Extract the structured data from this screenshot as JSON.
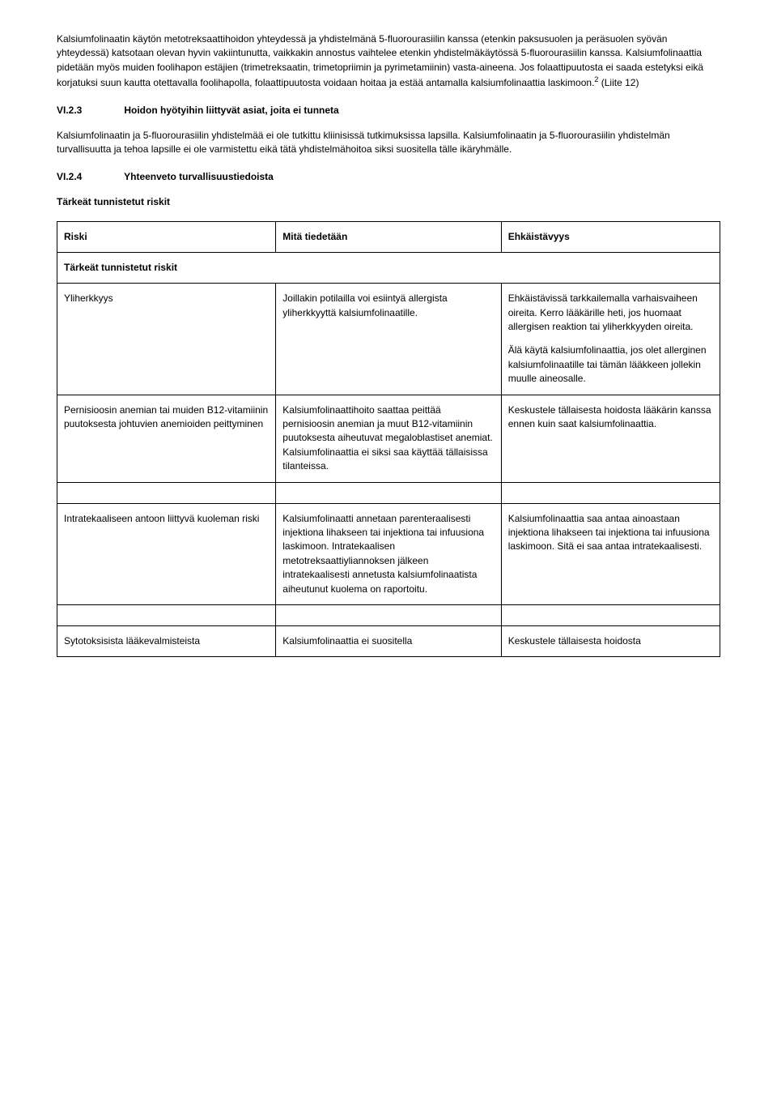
{
  "intro_p1": "Kalsiumfolinaatin käytön metotreksaattihoidon yhteydessä ja yhdistelmänä 5-fluorourasiilin kanssa (etenkin paksusuolen ja peräsuolen syövän yhteydessä) katsotaan olevan hyvin vakiintunutta, vaikkakin annostus vaihtelee etenkin yhdistelmäkäytössä 5-fluorourasiilin kanssa. Kalsiumfolinaattia pidetään myös muiden foolihapon estäjien (trimetreksaatin, trimetopriimin ja pyrimetamiinin) vasta-aineena. Jos folaattipuutosta ei saada estetyksi eikä korjatuksi suun kautta otettavalla foolihapolla, folaattipuutosta voidaan hoitaa ja estää antamalla kalsiumfolinaattia laskimoon.",
  "intro_p1_sup": "2",
  "intro_p1_suffix": " (Liite 12)",
  "heading_2_3_num": "VI.2.3",
  "heading_2_3_text": "Hoidon hyötyihin liittyvät asiat, joita ei tunneta",
  "p_2_3": "Kalsiumfolinaatin ja 5-fluorourasiilin yhdistelmää ei ole tutkittu kliinisissä tutkimuksissa lapsilla. Kalsiumfolinaatin ja 5-fluorourasiilin yhdistelmän turvallisuutta ja tehoa lapsille ei ole varmistettu eikä tätä yhdistelmähoitoa siksi suositella tälle ikäryhmälle.",
  "heading_2_4_num": "VI.2.4",
  "heading_2_4_text": "Yhteenveto turvallisuustiedoista",
  "subheading_risks": "Tärkeät tunnistetut riskit",
  "table": {
    "headers": {
      "col1": "Riski",
      "col2": "Mitä tiedetään",
      "col3": "Ehkäistävyys"
    },
    "rowSub": "Tärkeät tunnistetut riskit",
    "r1": {
      "c1": "Yliherkkyys",
      "c2": "Joillakin potilailla voi esiintyä allergista yliherkkyyttä kalsiumfolinaatille.",
      "c3a": "Ehkäistävissä tarkkailemalla varhaisvaiheen oireita. Kerro lääkärille heti, jos huomaat allergisen reaktion tai yliherkkyyden oireita.",
      "c3b": "Älä käytä kalsiumfolinaattia, jos olet allerginen kalsiumfolinaatille tai tämän lääkkeen jollekin muulle aineosalle."
    },
    "r2": {
      "c1": "Pernisioosin anemian tai muiden B12-vitamiinin puutoksesta johtuvien anemioiden peittyminen",
      "c2": "Kalsiumfolinaattihoito saattaa peittää pernisioosin anemian ja muut B12-vitamiinin puutoksesta aiheutuvat megaloblastiset anemiat. Kalsiumfolinaattia ei siksi saa käyttää tällaisissa tilanteissa.",
      "c3": "Keskustele tällaisesta hoidosta lääkärin kanssa ennen kuin saat kalsiumfolinaattia."
    },
    "r3": {
      "c1": "Intratekaaliseen antoon liittyvä kuoleman riski",
      "c2": "Kalsiumfolinaatti annetaan parenteraalisesti injektiona lihakseen tai injektiona tai infuusiona laskimoon. Intratekaalisen metotreksaattiyliannoksen jälkeen intratekaalisesti annetusta kalsiumfolinaatista aiheutunut kuolema on raportoitu.",
      "c3": "Kalsiumfolinaattia saa antaa ainoastaan injektiona lihakseen tai injektiona tai infuusiona laskimoon. Sitä ei saa antaa intratekaalisesti."
    },
    "r4": {
      "c1": "Sytotoksisista lääkevalmisteista",
      "c2": "Kalsiumfolinaattia ei suositella",
      "c3": "Keskustele tällaisesta hoidosta"
    }
  }
}
